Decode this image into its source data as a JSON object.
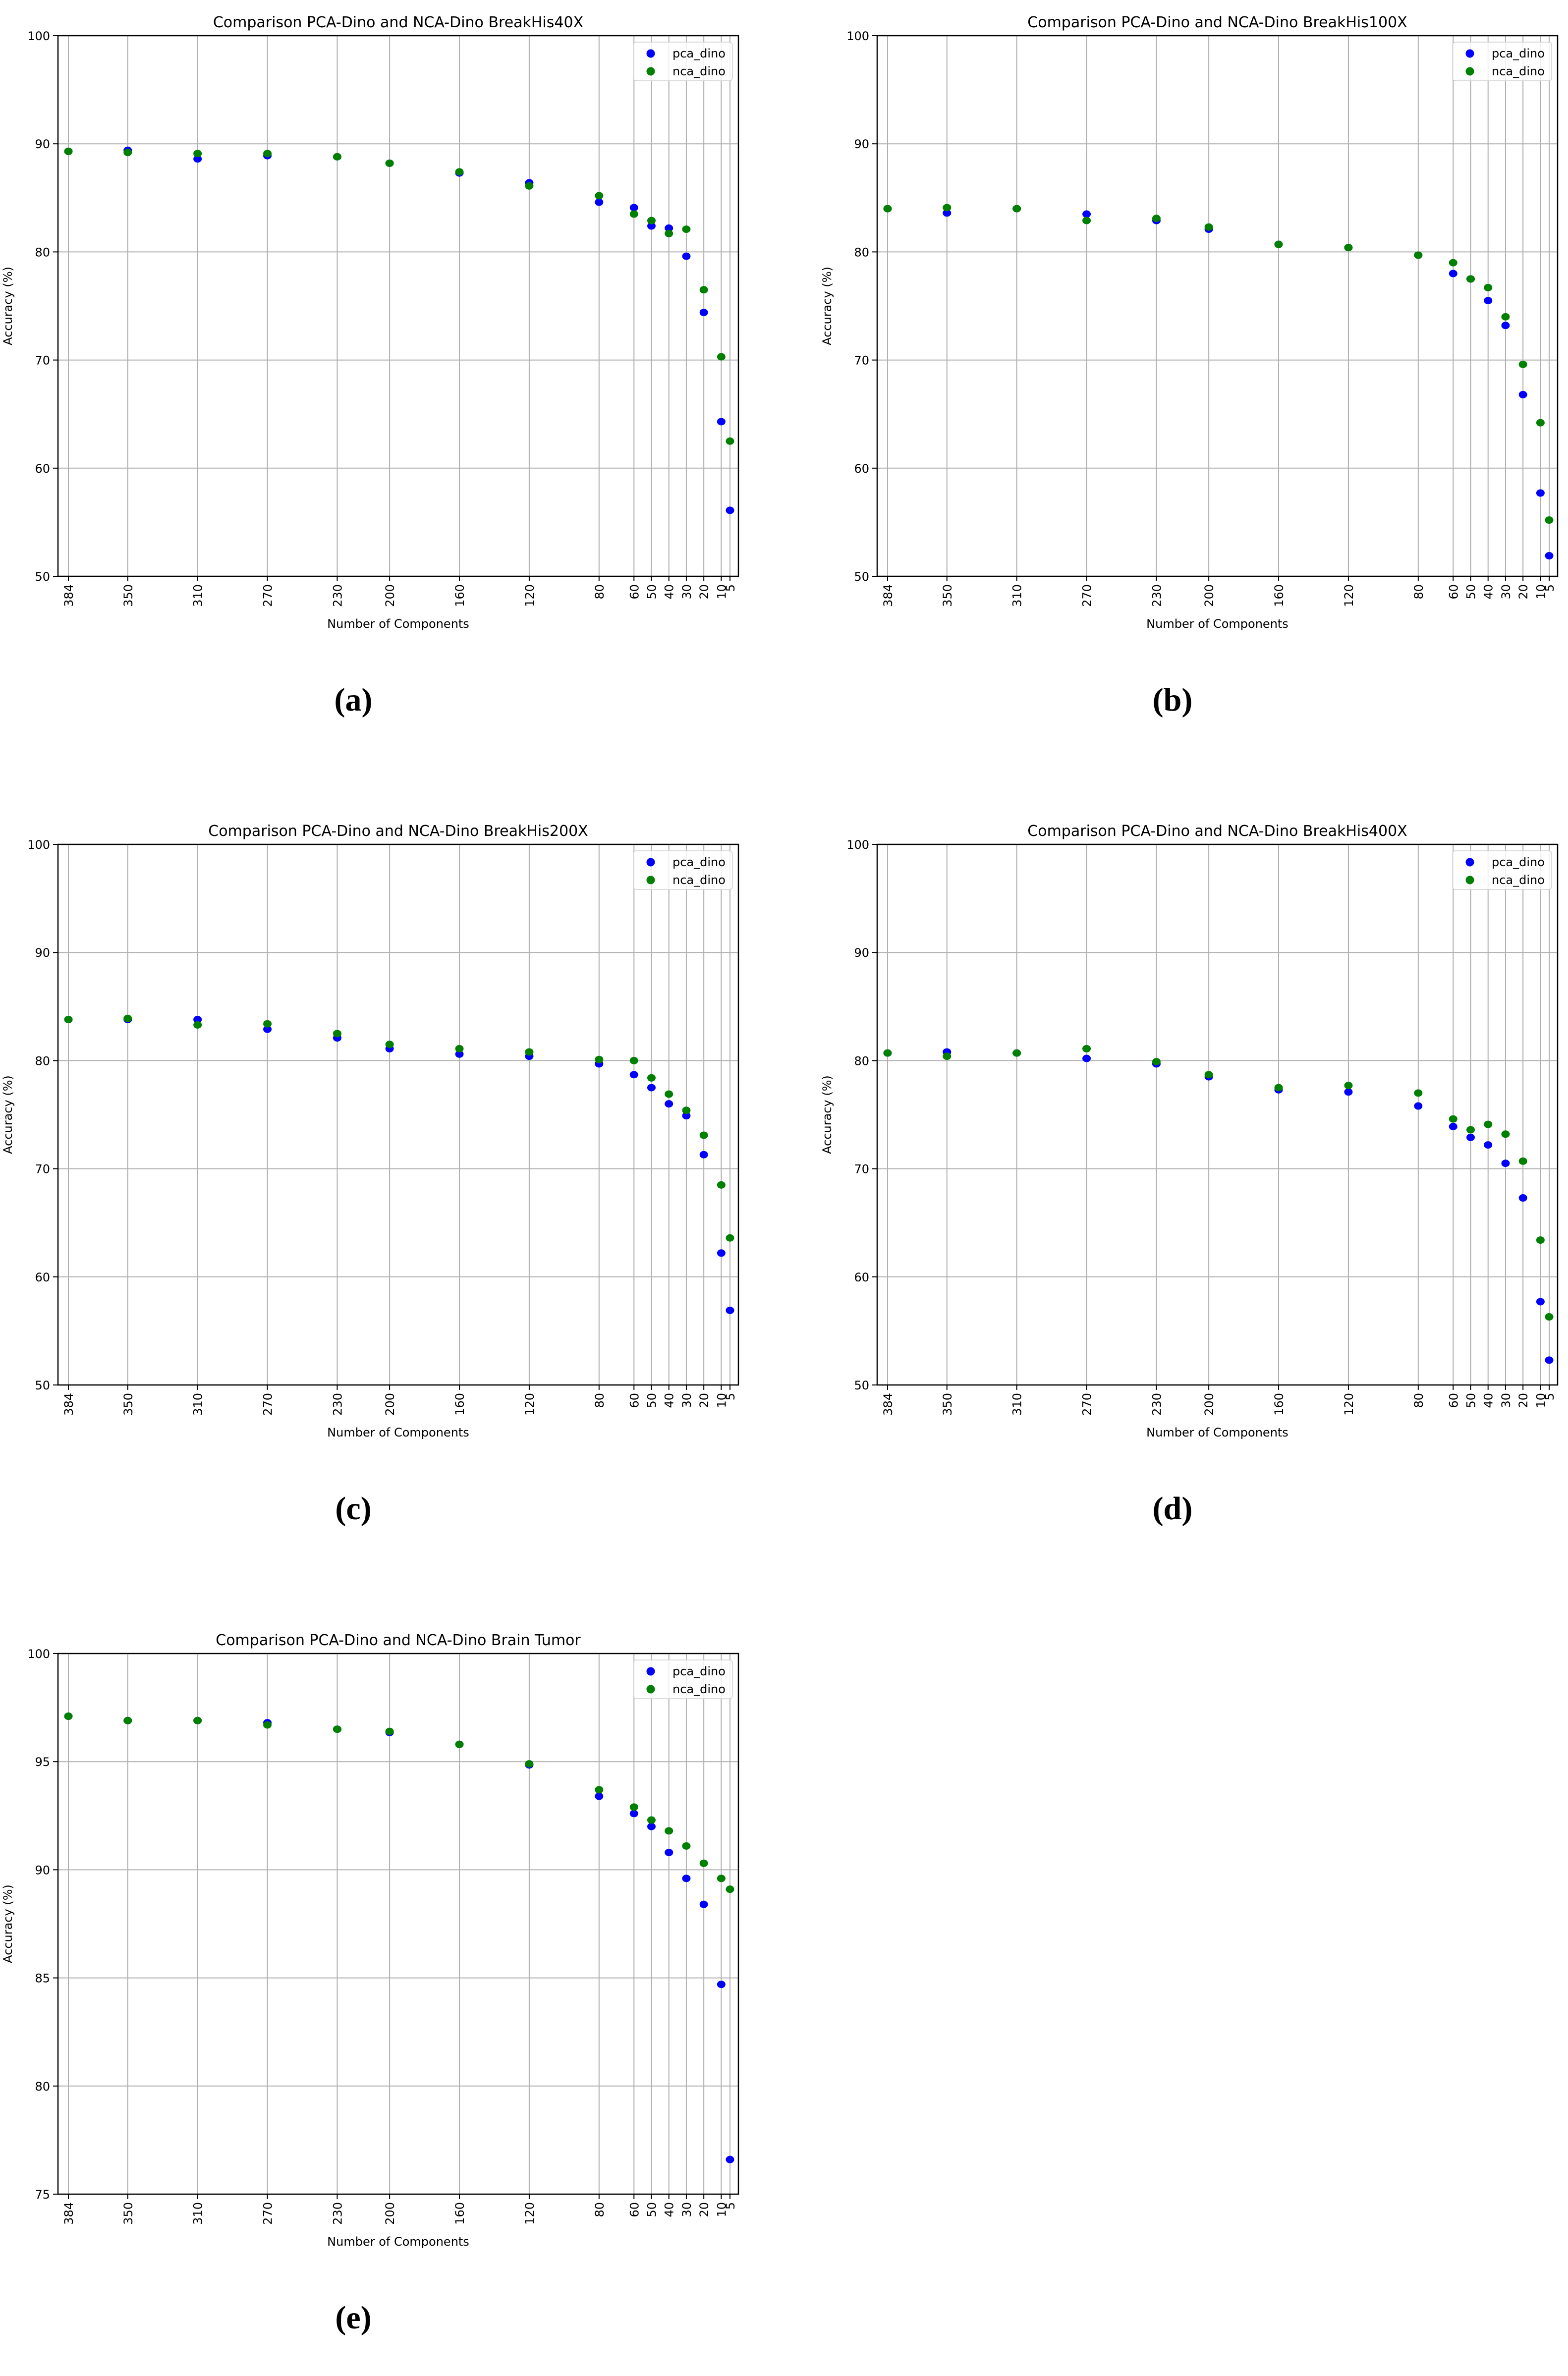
{
  "figure": {
    "panel_labels": [
      "(a)",
      "(b)",
      "(c)",
      "(d)",
      "(e)"
    ]
  },
  "legend": {
    "pca_label": "pca_dino",
    "nca_label": "nca_dino"
  },
  "colors": {
    "pca": "#0000ff",
    "nca": "#008000",
    "grid": "#b0b0b0",
    "axes": "#000000"
  },
  "chart_data": [
    {
      "type": "scatter",
      "title": "Comparison PCA-Dino and NCA-Dino BreakHis40X",
      "xlabel": "Number of Components",
      "ylabel": "Accuracy (%)",
      "x": [
        384,
        350,
        310,
        270,
        230,
        200,
        160,
        120,
        80,
        60,
        50,
        40,
        30,
        20,
        10,
        5
      ],
      "x_reversed": true,
      "ylim": [
        50,
        100
      ],
      "yticks": [
        50,
        60,
        70,
        80,
        90,
        100
      ],
      "grid": true,
      "legend_position": "upper right",
      "series": [
        {
          "name": "pca_dino",
          "color": "#0000ff",
          "values": [
            89.3,
            89.4,
            88.6,
            88.9,
            88.8,
            88.2,
            87.3,
            86.4,
            84.6,
            84.1,
            82.4,
            82.2,
            79.6,
            74.4,
            64.3,
            56.1
          ]
        },
        {
          "name": "nca_dino",
          "color": "#008000",
          "values": [
            89.3,
            89.2,
            89.1,
            89.1,
            88.8,
            88.2,
            87.4,
            86.1,
            85.2,
            83.5,
            82.9,
            81.7,
            82.1,
            76.5,
            70.3,
            62.5
          ]
        }
      ]
    },
    {
      "type": "scatter",
      "title": "Comparison PCA-Dino and NCA-Dino BreakHis100X",
      "xlabel": "Number of Components",
      "ylabel": "Accuracy (%)",
      "x": [
        384,
        350,
        310,
        270,
        230,
        200,
        160,
        120,
        80,
        60,
        50,
        40,
        30,
        20,
        10,
        5
      ],
      "x_reversed": true,
      "ylim": [
        50,
        100
      ],
      "yticks": [
        50,
        60,
        70,
        80,
        90,
        100
      ],
      "grid": true,
      "legend_position": "upper right",
      "series": [
        {
          "name": "pca_dino",
          "color": "#0000ff",
          "values": [
            84.0,
            83.6,
            84.0,
            83.5,
            82.9,
            82.1,
            80.7,
            80.4,
            79.7,
            78.0,
            77.5,
            75.5,
            73.2,
            66.8,
            57.7,
            51.9
          ]
        },
        {
          "name": "nca_dino",
          "color": "#008000",
          "values": [
            84.0,
            84.1,
            84.0,
            82.9,
            83.1,
            82.3,
            80.7,
            80.4,
            79.7,
            79.0,
            77.5,
            76.7,
            74.0,
            69.6,
            64.2,
            55.2
          ]
        }
      ]
    },
    {
      "type": "scatter",
      "title": "Comparison PCA-Dino and NCA-Dino BreakHis200X",
      "xlabel": "Number of Components",
      "ylabel": "Accuracy (%)",
      "x": [
        384,
        350,
        310,
        270,
        230,
        200,
        160,
        120,
        80,
        60,
        50,
        40,
        30,
        20,
        10,
        5
      ],
      "x_reversed": true,
      "ylim": [
        50,
        100
      ],
      "yticks": [
        50,
        60,
        70,
        80,
        90,
        100
      ],
      "grid": true,
      "legend_position": "upper right",
      "series": [
        {
          "name": "pca_dino",
          "color": "#0000ff",
          "values": [
            83.8,
            83.8,
            83.8,
            82.9,
            82.1,
            81.1,
            80.6,
            80.4,
            79.7,
            78.7,
            77.5,
            76.0,
            74.9,
            71.3,
            62.2,
            56.9
          ]
        },
        {
          "name": "nca_dino",
          "color": "#008000",
          "values": [
            83.8,
            83.9,
            83.3,
            83.4,
            82.5,
            81.5,
            81.1,
            80.8,
            80.1,
            80.0,
            78.4,
            76.9,
            75.4,
            73.1,
            68.5,
            63.6
          ]
        }
      ]
    },
    {
      "type": "scatter",
      "title": "Comparison PCA-Dino and NCA-Dino BreakHis400X",
      "xlabel": "Number of Components",
      "ylabel": "Accuracy (%)",
      "x": [
        384,
        350,
        310,
        270,
        230,
        200,
        160,
        120,
        80,
        60,
        50,
        40,
        30,
        20,
        10,
        5
      ],
      "x_reversed": true,
      "ylim": [
        50,
        100
      ],
      "yticks": [
        50,
        60,
        70,
        80,
        90,
        100
      ],
      "grid": true,
      "legend_position": "upper right",
      "series": [
        {
          "name": "pca_dino",
          "color": "#0000ff",
          "values": [
            80.7,
            80.8,
            80.7,
            80.2,
            79.7,
            78.5,
            77.3,
            77.1,
            75.8,
            73.9,
            72.9,
            72.2,
            70.5,
            67.3,
            57.7,
            52.3
          ]
        },
        {
          "name": "nca_dino",
          "color": "#008000",
          "values": [
            80.7,
            80.4,
            80.7,
            81.1,
            79.9,
            78.7,
            77.5,
            77.7,
            77.0,
            74.6,
            73.6,
            74.1,
            73.2,
            70.7,
            63.4,
            56.3
          ]
        }
      ]
    },
    {
      "type": "scatter",
      "title": "Comparison PCA-Dino and NCA-Dino Brain Tumor",
      "xlabel": "Number of Components",
      "ylabel": "Accuracy (%)",
      "x": [
        384,
        350,
        310,
        270,
        230,
        200,
        160,
        120,
        80,
        60,
        50,
        40,
        30,
        20,
        10,
        5
      ],
      "x_reversed": true,
      "ylim": [
        75,
        100
      ],
      "yticks": [
        75,
        80,
        85,
        90,
        95,
        100
      ],
      "grid": true,
      "legend_position": "upper right",
      "series": [
        {
          "name": "pca_dino",
          "color": "#0000ff",
          "values": [
            97.1,
            96.9,
            96.9,
            96.8,
            96.5,
            96.35,
            95.8,
            94.85,
            93.4,
            92.6,
            92.0,
            90.8,
            89.6,
            88.4,
            84.7,
            76.6
          ]
        },
        {
          "name": "nca_dino",
          "color": "#008000",
          "values": [
            97.1,
            96.9,
            96.9,
            96.7,
            96.5,
            96.4,
            95.8,
            94.9,
            93.7,
            92.9,
            92.3,
            91.8,
            91.1,
            90.3,
            89.6,
            89.1
          ]
        }
      ]
    }
  ]
}
